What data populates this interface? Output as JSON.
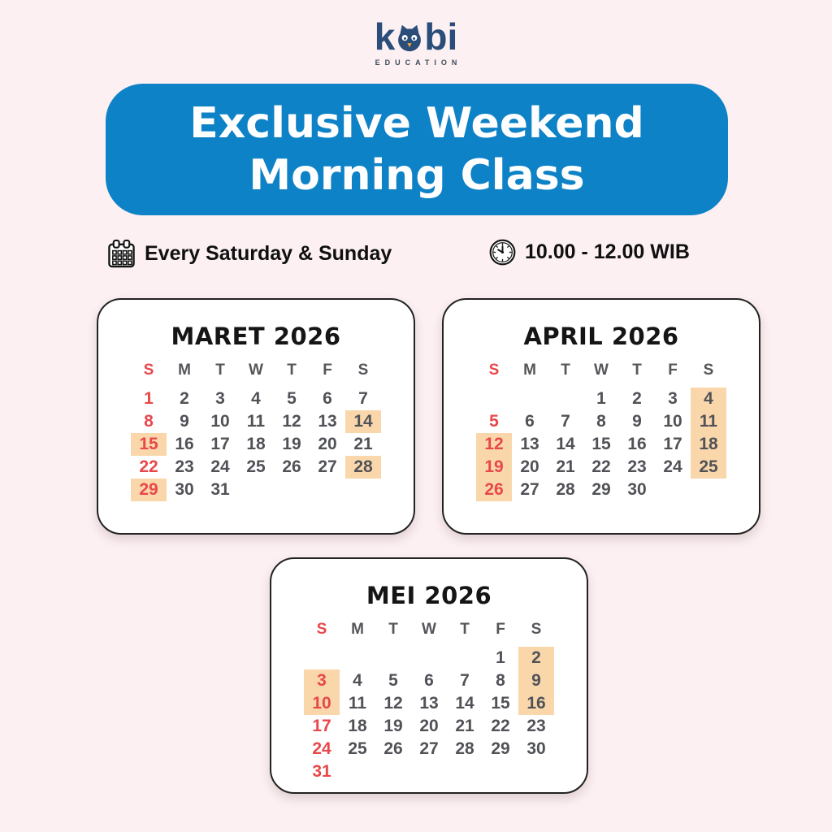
{
  "logo": {
    "brand_prefix": "k",
    "brand_suffix": "bi",
    "tagline": "EDUCATION"
  },
  "banner": {
    "line1": "Exclusive Weekend",
    "line2": "Morning Class"
  },
  "info": {
    "schedule": "Every Saturday & Sunday",
    "time": "10.00 - 12.00 WIB"
  },
  "colors": {
    "background": "#fcf0f2",
    "banner_blue": "#0e82c6",
    "logo_navy": "#2b4d7a",
    "accent_red": "#e8474b",
    "highlight_orange": "#f9d7ab",
    "text_dark": "#151515",
    "text_gray": "#55565a",
    "beak_orange": "#e9a63b"
  },
  "calendars": [
    {
      "title": "MARET 2026",
      "day_headers": [
        "S",
        "M",
        "T",
        "W",
        "T",
        "F",
        "S"
      ],
      "weeks": [
        [
          1,
          2,
          3,
          4,
          5,
          6,
          7
        ],
        [
          8,
          9,
          10,
          11,
          12,
          13,
          14
        ],
        [
          15,
          16,
          17,
          18,
          19,
          20,
          21
        ],
        [
          22,
          23,
          24,
          25,
          26,
          27,
          28
        ],
        [
          29,
          30,
          31,
          null,
          null,
          null,
          null
        ]
      ],
      "highlighted_days": [
        14,
        15,
        28,
        29
      ]
    },
    {
      "title": "APRIL 2026",
      "day_headers": [
        "S",
        "M",
        "T",
        "W",
        "T",
        "F",
        "S"
      ],
      "weeks": [
        [
          null,
          null,
          null,
          1,
          2,
          3,
          4
        ],
        [
          5,
          6,
          7,
          8,
          9,
          10,
          11
        ],
        [
          12,
          13,
          14,
          15,
          16,
          17,
          18
        ],
        [
          19,
          20,
          21,
          22,
          23,
          24,
          25
        ],
        [
          26,
          27,
          28,
          29,
          30,
          null,
          null
        ]
      ],
      "highlighted_days": [
        4,
        11,
        12,
        18,
        19,
        25,
        26
      ]
    },
    {
      "title": "MEI 2026",
      "day_headers": [
        "S",
        "M",
        "T",
        "W",
        "T",
        "F",
        "S"
      ],
      "weeks": [
        [
          null,
          null,
          null,
          null,
          null,
          1,
          2
        ],
        [
          3,
          4,
          5,
          6,
          7,
          8,
          9
        ],
        [
          10,
          11,
          12,
          13,
          14,
          15,
          16
        ],
        [
          17,
          18,
          19,
          20,
          21,
          22,
          23
        ],
        [
          24,
          25,
          26,
          27,
          28,
          29,
          30
        ],
        [
          31,
          null,
          null,
          null,
          null,
          null,
          null
        ]
      ],
      "highlighted_days": [
        2,
        3,
        9,
        10,
        16
      ]
    }
  ]
}
